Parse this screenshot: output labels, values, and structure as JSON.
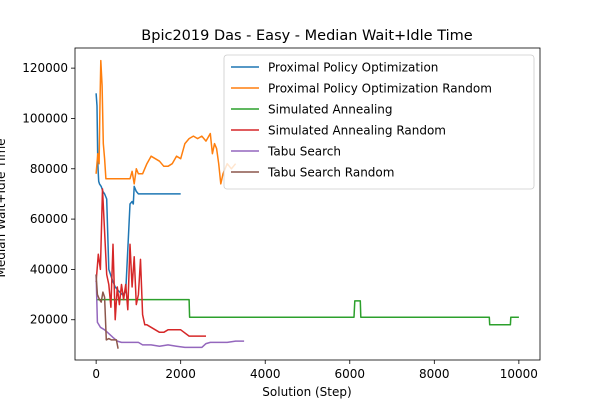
{
  "chart_data": {
    "type": "line",
    "title": "Bpic2019 Das - Easy - Median Wait+Idle Time",
    "xlabel": "Solution (Step)",
    "ylabel": "Median Wait+Idle Time",
    "xlim": [
      -500,
      10500
    ],
    "ylim": [
      4000,
      128000
    ],
    "xticks": [
      0,
      2000,
      4000,
      6000,
      8000,
      10000
    ],
    "yticks": [
      20000,
      40000,
      60000,
      80000,
      100000,
      120000
    ],
    "xtick_labels": [
      "0",
      "2000",
      "4000",
      "6000",
      "8000",
      "10000"
    ],
    "ytick_labels": [
      "20000",
      "40000",
      "60000",
      "80000",
      "100000",
      "120000"
    ],
    "grid": false,
    "legend_position": "top-right",
    "series": [
      {
        "name": "Proximal Policy Optimization",
        "color": "#1f77b4",
        "points": [
          [
            0,
            110000
          ],
          [
            20,
            105000
          ],
          [
            40,
            82000
          ],
          [
            60,
            75000
          ],
          [
            80,
            74000
          ],
          [
            120,
            73000
          ],
          [
            160,
            71000
          ],
          [
            200,
            70000
          ],
          [
            250,
            68000
          ],
          [
            300,
            40000
          ],
          [
            380,
            36000
          ],
          [
            450,
            33000
          ],
          [
            500,
            32000
          ],
          [
            560,
            31000
          ],
          [
            620,
            30000
          ],
          [
            700,
            31000
          ],
          [
            760,
            52000
          ],
          [
            800,
            66000
          ],
          [
            850,
            67000
          ],
          [
            880,
            66000
          ],
          [
            900,
            73000
          ],
          [
            950,
            71000
          ],
          [
            1000,
            70000
          ],
          [
            1200,
            70000
          ],
          [
            1500,
            70000
          ],
          [
            1800,
            70000
          ],
          [
            2000,
            70000
          ]
        ]
      },
      {
        "name": "Proximal Policy Optimization Random",
        "color": "#ff7f0e",
        "points": [
          [
            0,
            78000
          ],
          [
            40,
            86000
          ],
          [
            70,
            82000
          ],
          [
            90,
            104000
          ],
          [
            110,
            123000
          ],
          [
            140,
            113000
          ],
          [
            170,
            90000
          ],
          [
            200,
            84000
          ],
          [
            230,
            76000
          ],
          [
            300,
            76000
          ],
          [
            400,
            76000
          ],
          [
            500,
            76000
          ],
          [
            600,
            76000
          ],
          [
            700,
            76000
          ],
          [
            800,
            76000
          ],
          [
            850,
            79000
          ],
          [
            900,
            74000
          ],
          [
            950,
            80000
          ],
          [
            1000,
            78000
          ],
          [
            1100,
            78000
          ],
          [
            1200,
            82000
          ],
          [
            1300,
            85000
          ],
          [
            1400,
            84000
          ],
          [
            1500,
            83000
          ],
          [
            1600,
            81000
          ],
          [
            1700,
            81000
          ],
          [
            1800,
            82000
          ],
          [
            1900,
            85000
          ],
          [
            2000,
            84000
          ],
          [
            2100,
            90000
          ],
          [
            2200,
            92000
          ],
          [
            2300,
            93000
          ],
          [
            2400,
            92000
          ],
          [
            2500,
            93000
          ],
          [
            2600,
            91000
          ],
          [
            2700,
            94000
          ],
          [
            2750,
            86000
          ],
          [
            2800,
            90000
          ],
          [
            2850,
            88000
          ],
          [
            2900,
            82000
          ],
          [
            2950,
            74000
          ],
          [
            3000,
            78000
          ],
          [
            3100,
            82000
          ],
          [
            3200,
            80000
          ],
          [
            3300,
            82000
          ]
        ]
      },
      {
        "name": "Simulated Annealing",
        "color": "#2ca02c",
        "points": [
          [
            0,
            28000
          ],
          [
            200,
            28000
          ],
          [
            500,
            28000
          ],
          [
            1000,
            28000
          ],
          [
            1500,
            28000
          ],
          [
            2000,
            28000
          ],
          [
            2200,
            28000
          ],
          [
            2210,
            21000
          ],
          [
            4000,
            21000
          ],
          [
            6100,
            21000
          ],
          [
            6120,
            27500
          ],
          [
            6250,
            27500
          ],
          [
            6260,
            21000
          ],
          [
            8000,
            21000
          ],
          [
            9300,
            21000
          ],
          [
            9310,
            18000
          ],
          [
            9800,
            18000
          ],
          [
            9810,
            21000
          ],
          [
            10000,
            21000
          ]
        ]
      },
      {
        "name": "Simulated Annealing Random",
        "color": "#d62728",
        "points": [
          [
            0,
            35000
          ],
          [
            50,
            46000
          ],
          [
            100,
            40000
          ],
          [
            150,
            72000
          ],
          [
            200,
            55000
          ],
          [
            250,
            38000
          ],
          [
            300,
            34000
          ],
          [
            350,
            25000
          ],
          [
            400,
            50000
          ],
          [
            450,
            20000
          ],
          [
            500,
            33000
          ],
          [
            550,
            26000
          ],
          [
            600,
            34000
          ],
          [
            650,
            28000
          ],
          [
            700,
            34000
          ],
          [
            750,
            24000
          ],
          [
            800,
            50000
          ],
          [
            850,
            33000
          ],
          [
            900,
            45000
          ],
          [
            950,
            26000
          ],
          [
            1000,
            30000
          ],
          [
            1050,
            44000
          ],
          [
            1100,
            22000
          ],
          [
            1150,
            18000
          ],
          [
            1200,
            18000
          ],
          [
            1300,
            17000
          ],
          [
            1400,
            16000
          ],
          [
            1500,
            15000
          ],
          [
            1600,
            15000
          ],
          [
            1700,
            16000
          ],
          [
            1800,
            16000
          ],
          [
            2000,
            16000
          ],
          [
            2200,
            13500
          ],
          [
            2400,
            13500
          ],
          [
            2600,
            13500
          ]
        ]
      },
      {
        "name": "Tabu Search",
        "color": "#9467bd",
        "points": [
          [
            0,
            38000
          ],
          [
            30,
            19000
          ],
          [
            100,
            17000
          ],
          [
            200,
            16000
          ],
          [
            300,
            14500
          ],
          [
            400,
            13000
          ],
          [
            500,
            11500
          ],
          [
            600,
            11000
          ],
          [
            800,
            11000
          ],
          [
            1000,
            11000
          ],
          [
            1100,
            10000
          ],
          [
            1300,
            10000
          ],
          [
            1500,
            9500
          ],
          [
            1700,
            10000
          ],
          [
            1900,
            9500
          ],
          [
            2100,
            9000
          ],
          [
            2300,
            9000
          ],
          [
            2500,
            9000
          ],
          [
            2600,
            10500
          ],
          [
            2700,
            11000
          ],
          [
            2900,
            11000
          ],
          [
            3100,
            11000
          ],
          [
            3300,
            11500
          ],
          [
            3500,
            11500
          ]
        ]
      },
      {
        "name": "Tabu Search Random",
        "color": "#8c564b",
        "points": [
          [
            0,
            38000
          ],
          [
            30,
            30000
          ],
          [
            80,
            28000
          ],
          [
            120,
            27000
          ],
          [
            160,
            31000
          ],
          [
            200,
            29000
          ],
          [
            240,
            12000
          ],
          [
            300,
            12500
          ],
          [
            360,
            12000
          ],
          [
            420,
            12000
          ],
          [
            480,
            12000
          ],
          [
            520,
            8500
          ]
        ]
      }
    ]
  }
}
